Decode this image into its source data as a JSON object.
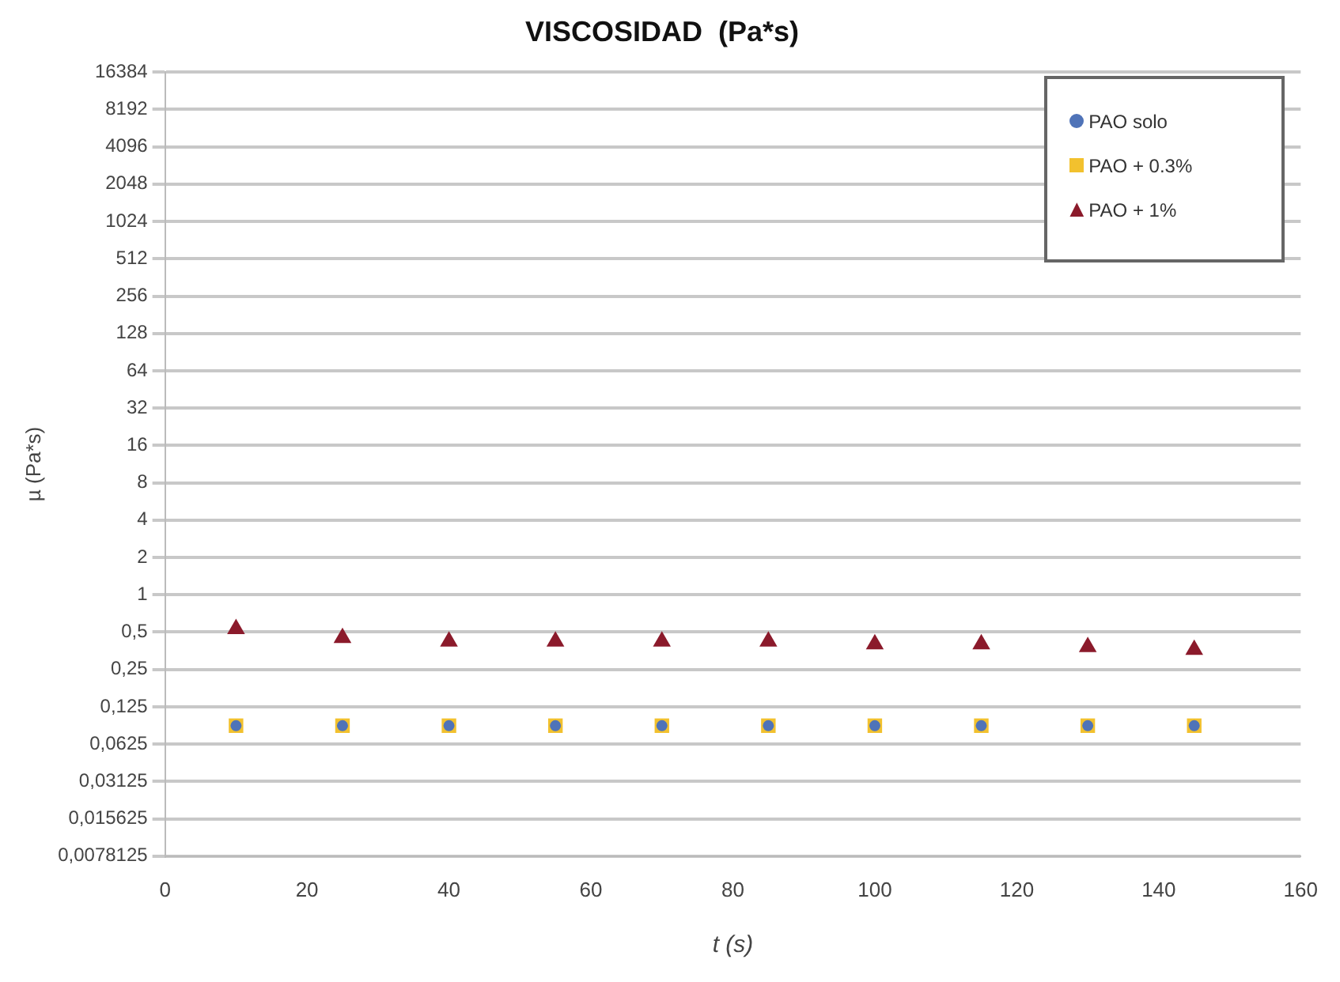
{
  "chart_data": {
    "type": "scatter",
    "title": "VISCOSIDAD  (Pa*s)",
    "xlabel": "t (s)",
    "ylabel": "µ (Pa*s)",
    "x": [
      10,
      25,
      40,
      55,
      70,
      85,
      100,
      115,
      130,
      145
    ],
    "series": [
      {
        "name": "PAO solo",
        "color": "#4f73b8",
        "marker": "circle",
        "values": [
          0.088,
          0.088,
          0.088,
          0.088,
          0.088,
          0.088,
          0.088,
          0.088,
          0.088,
          0.088
        ]
      },
      {
        "name": "PAO + 0.3%",
        "color": "#f2c12e",
        "marker": "square",
        "values": [
          0.088,
          0.088,
          0.088,
          0.088,
          0.088,
          0.088,
          0.088,
          0.088,
          0.088,
          0.088
        ]
      },
      {
        "name": "PAO + 1%",
        "color": "#8b1a2b",
        "marker": "triangle",
        "values": [
          0.53,
          0.45,
          0.42,
          0.42,
          0.42,
          0.42,
          0.4,
          0.4,
          0.38,
          0.36
        ]
      }
    ],
    "log": "y",
    "xlim": [
      0,
      160
    ],
    "xticks": [
      0,
      20,
      40,
      60,
      80,
      100,
      120,
      140,
      160
    ],
    "ylim": [
      0.0078125,
      16384
    ],
    "yticks": [
      {
        "value": 0.0078125,
        "label": "0,0078125"
      },
      {
        "value": 0.015625,
        "label": "0,015625"
      },
      {
        "value": 0.03125,
        "label": "0,03125"
      },
      {
        "value": 0.0625,
        "label": "0,0625"
      },
      {
        "value": 0.125,
        "label": "0,125"
      },
      {
        "value": 0.25,
        "label": "0,25"
      },
      {
        "value": 0.5,
        "label": "0,5"
      },
      1,
      2,
      4,
      8,
      16,
      32,
      64,
      128,
      256,
      512,
      1024,
      2048,
      4096,
      8192,
      16384
    ],
    "grid": "y",
    "legend": "top right"
  }
}
